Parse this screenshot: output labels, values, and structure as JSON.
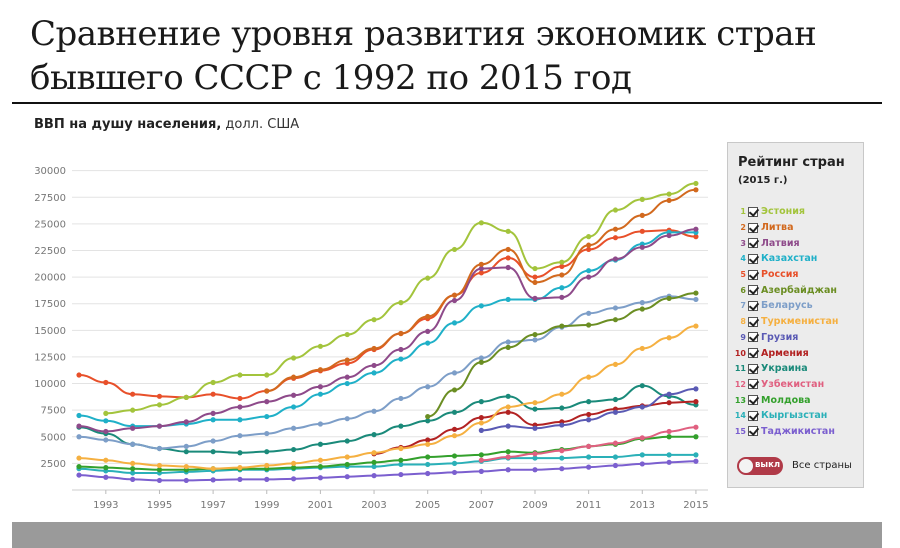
{
  "header": {
    "title": "Сравнение уровня развития экономик стран бывшего СССР с 1992 по 2015 год",
    "subtitle_bold": "ВВП на душу населения,",
    "subtitle_rest": " долл. США"
  },
  "legend": {
    "title": "Рейтинг стран",
    "subtitle": "(2015 г.)",
    "toggle_label": "выкл",
    "all_label": "Все страны"
  },
  "chart_data": {
    "type": "line",
    "title": "ВВП на душу населения, долл. США",
    "xlabel": "",
    "ylabel": "",
    "x": [
      1992,
      1993,
      1994,
      1995,
      1996,
      1997,
      1998,
      1999,
      2000,
      2001,
      2002,
      2003,
      2004,
      2005,
      2006,
      2007,
      2008,
      2009,
      2010,
      2011,
      2012,
      2013,
      2014,
      2015
    ],
    "x_ticks": [
      "1993",
      "1995",
      "1997",
      "1999",
      "2001",
      "2003",
      "2005",
      "2007",
      "2009",
      "2011",
      "2013",
      "2015"
    ],
    "y_ticks": [
      "2500",
      "5000",
      "7500",
      "10000",
      "12500",
      "15000",
      "17500",
      "20000",
      "22500",
      "25000",
      "27500",
      "30000"
    ],
    "ylim": [
      0,
      31000
    ],
    "grid": true,
    "legend_position": "right",
    "series": [
      {
        "rank": "1",
        "name": "Эстония",
        "color": "#a3c43c",
        "values": [
          null,
          7200,
          7500,
          8000,
          8700,
          10100,
          10800,
          10800,
          12400,
          13500,
          14600,
          16000,
          17600,
          19900,
          22600,
          25100,
          24300,
          20800,
          21400,
          23800,
          26300,
          27300,
          27800,
          28800
        ]
      },
      {
        "rank": "2",
        "name": "Литва",
        "color": "#d2691e",
        "values": [
          null,
          null,
          null,
          null,
          null,
          null,
          null,
          9300,
          10600,
          11300,
          12200,
          13300,
          14700,
          16300,
          18300,
          21200,
          22600,
          19500,
          20200,
          23000,
          24500,
          25800,
          27200,
          28200
        ]
      },
      {
        "rank": "3",
        "name": "Латвия",
        "color": "#8e4a8a",
        "values": [
          6000,
          5500,
          5800,
          6000,
          6400,
          7200,
          7800,
          8300,
          8900,
          9700,
          10600,
          11700,
          13200,
          14900,
          17800,
          20800,
          20900,
          18000,
          18100,
          20000,
          21700,
          22800,
          23900,
          24500
        ]
      },
      {
        "rank": "4",
        "name": "Казахстан",
        "color": "#1fb0c8",
        "values": [
          7000,
          6500,
          6000,
          6000,
          6200,
          6600,
          6600,
          6900,
          7800,
          9000,
          10000,
          11000,
          12300,
          13800,
          15700,
          17300,
          17900,
          17900,
          19000,
          20600,
          21600,
          23100,
          24200,
          24200
        ]
      },
      {
        "rank": "5",
        "name": "Россия",
        "color": "#e8502a",
        "values": [
          10800,
          10100,
          9000,
          8800,
          8700,
          9000,
          8600,
          9300,
          10500,
          11200,
          11900,
          13200,
          14700,
          16100,
          18300,
          20400,
          21800,
          20000,
          21000,
          22600,
          23700,
          24300,
          24400,
          23800
        ]
      },
      {
        "rank": "6",
        "name": "Азербайджан",
        "color": "#6b8e23",
        "values": [
          null,
          null,
          null,
          null,
          null,
          null,
          null,
          null,
          null,
          null,
          null,
          null,
          null,
          6900,
          9400,
          12000,
          13400,
          14600,
          15400,
          15500,
          16000,
          17000,
          18000,
          18500
        ]
      },
      {
        "rank": "7",
        "name": "Беларусь",
        "color": "#7d9ec8",
        "values": [
          5000,
          4700,
          4300,
          3900,
          4100,
          4600,
          5100,
          5300,
          5800,
          6200,
          6700,
          7400,
          8600,
          9700,
          11000,
          12400,
          13900,
          14100,
          15300,
          16600,
          17100,
          17600,
          18200,
          17900
        ]
      },
      {
        "rank": "8",
        "name": "Туркменистан",
        "color": "#f5b041",
        "values": [
          3000,
          2800,
          2500,
          2300,
          2200,
          2000,
          2100,
          2300,
          2500,
          2800,
          3100,
          3500,
          3900,
          4300,
          5100,
          6300,
          7800,
          8200,
          9000,
          10600,
          11800,
          13300,
          14300,
          15400
        ]
      },
      {
        "rank": "9",
        "name": "Грузия",
        "color": "#5a5ab4",
        "values": [
          null,
          null,
          null,
          null,
          null,
          null,
          null,
          null,
          null,
          null,
          null,
          null,
          null,
          null,
          null,
          5600,
          6000,
          5800,
          6100,
          6600,
          7300,
          7800,
          9000,
          9500
        ]
      },
      {
        "rank": "10",
        "name": "Армения",
        "color": "#b22222",
        "values": [
          null,
          null,
          null,
          null,
          null,
          null,
          null,
          null,
          null,
          null,
          null,
          3400,
          4000,
          4700,
          5700,
          6800,
          7300,
          6100,
          6400,
          7100,
          7600,
          7900,
          8200,
          8300
        ]
      },
      {
        "rank": "11",
        "name": "Украина",
        "color": "#1a8a7a",
        "values": [
          5900,
          5300,
          4300,
          3900,
          3600,
          3600,
          3500,
          3600,
          3800,
          4300,
          4600,
          5200,
          6000,
          6500,
          7300,
          8300,
          8800,
          7600,
          7700,
          8300,
          8500,
          9800,
          8800,
          8000
        ]
      },
      {
        "rank": "12",
        "name": "Узбекистан",
        "color": "#e06080",
        "values": [
          null,
          null,
          null,
          null,
          null,
          null,
          null,
          null,
          null,
          null,
          null,
          null,
          null,
          null,
          null,
          2800,
          3100,
          3400,
          3700,
          4100,
          4400,
          4900,
          5500,
          5900
        ]
      },
      {
        "rank": "13",
        "name": "Молдова",
        "color": "#33a02c",
        "values": [
          2200,
          2100,
          2000,
          1900,
          1900,
          2000,
          2000,
          2000,
          2100,
          2200,
          2400,
          2600,
          2800,
          3100,
          3200,
          3300,
          3600,
          3500,
          3800,
          4100,
          4300,
          4800,
          5000,
          5000
        ]
      },
      {
        "rank": "14",
        "name": "Кыргызстан",
        "color": "#2ab0b8",
        "values": [
          2000,
          1800,
          1600,
          1600,
          1700,
          1800,
          1900,
          1900,
          2000,
          2100,
          2200,
          2200,
          2400,
          2400,
          2500,
          2700,
          3000,
          3000,
          3000,
          3100,
          3100,
          3300,
          3300,
          3300
        ]
      },
      {
        "rank": "15",
        "name": "Таджикистан",
        "color": "#7b5fcf",
        "values": [
          1400,
          1200,
          1000,
          900,
          900,
          950,
          1000,
          1000,
          1050,
          1150,
          1250,
          1350,
          1450,
          1550,
          1650,
          1750,
          1900,
          1900,
          2000,
          2150,
          2300,
          2450,
          2600,
          2700
        ]
      }
    ]
  }
}
